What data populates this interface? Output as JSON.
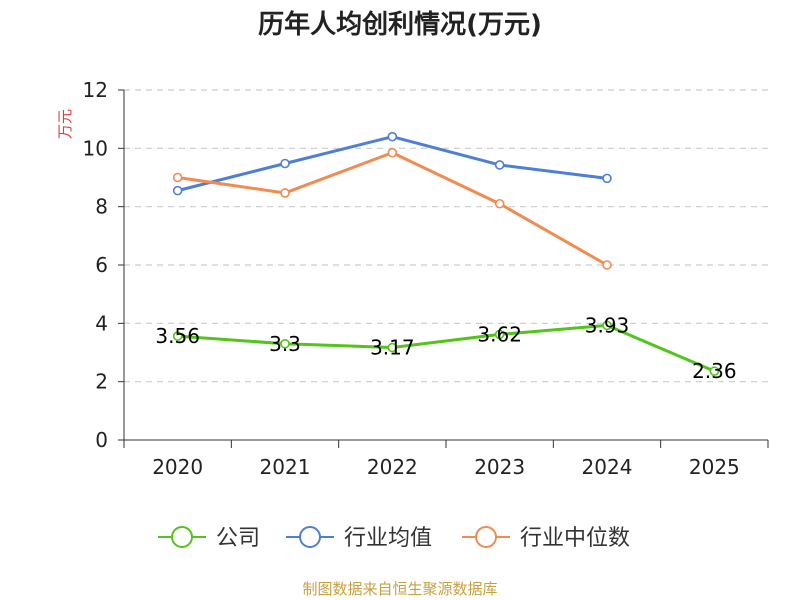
{
  "chart_data": {
    "type": "line",
    "title": "历年人均创利情况(万元)",
    "ylabel": "万元",
    "xlabel": "",
    "categories": [
      "2020",
      "2021",
      "2022",
      "2023",
      "2024",
      "2025"
    ],
    "ylim": [
      0,
      12
    ],
    "yticks": [
      0,
      2,
      4,
      6,
      8,
      10,
      12
    ],
    "grid": true,
    "legend_position": "bottom",
    "series": [
      {
        "name": "公司",
        "color": "#52c41a",
        "values": [
          3.56,
          3.3,
          3.17,
          3.62,
          3.93,
          2.36
        ],
        "labels": [
          "3.56",
          "3.3",
          "3.17",
          "3.62",
          "3.93",
          "2.36"
        ]
      },
      {
        "name": "行业均值",
        "color": "#4e7fd6",
        "values": [
          8.55,
          9.48,
          10.4,
          9.43,
          8.97,
          null
        ]
      },
      {
        "name": "行业中位数",
        "color": "#f28b50",
        "values": [
          9.0,
          8.47,
          9.85,
          8.1,
          6.0,
          null
        ]
      }
    ],
    "source": "制图数据来自恒生聚源数据库"
  },
  "colors": {
    "ylabel": "#e03c3c",
    "source": "#c8a040",
    "grid": "#cccccc",
    "axis": "#333333"
  }
}
